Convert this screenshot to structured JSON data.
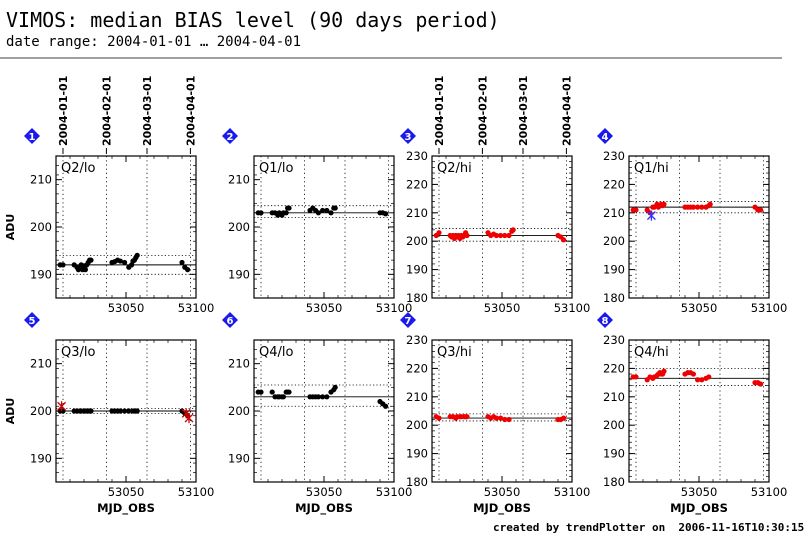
{
  "header": {
    "title": "VIMOS: median BIAS level (90 days period)",
    "subtitle": "date range: 2004-01-01 … 2004-04-01"
  },
  "footer": {
    "credit": "created by trendPlotter on  2006-11-16T10:30:15"
  },
  "colors": {
    "lo_points": "#000000",
    "hi_points": "#ee0000",
    "badge": "#1a1aee",
    "outlier_lo": "#cc0000",
    "outlier_hi": "#3333ff"
  },
  "chart_data": {
    "type": "scatter",
    "x_label": "MJD_OBS",
    "y_label": "ADU",
    "x_range": [
      53000,
      53100
    ],
    "x_ticks": [
      53050,
      53100
    ],
    "date_marks": [
      {
        "label": "2004-01-01",
        "mjd": 53005
      },
      {
        "label": "2004-02-01",
        "mjd": 53036
      },
      {
        "label": "2004-03-01",
        "mjd": 53065
      },
      {
        "label": "2004-04-01",
        "mjd": 53096
      }
    ],
    "panels": [
      {
        "num": "1",
        "label": "Q2/lo",
        "ylim": [
          185,
          215
        ],
        "yticks": [
          190,
          200,
          210
        ],
        "median": 192,
        "band": [
          190,
          194
        ],
        "color": "black",
        "points": [
          [
            53003,
            192
          ],
          [
            53005,
            192
          ],
          [
            53013,
            192
          ],
          [
            53015,
            191.5
          ],
          [
            53016,
            191
          ],
          [
            53017,
            191.2
          ],
          [
            53018,
            192
          ],
          [
            53019,
            191
          ],
          [
            53020,
            191.8
          ],
          [
            53021,
            191
          ],
          [
            53022,
            192
          ],
          [
            53023,
            192.5
          ],
          [
            53024,
            193
          ],
          [
            53025,
            193
          ],
          [
            53040,
            192.5
          ],
          [
            53042,
            192.7
          ],
          [
            53044,
            193
          ],
          [
            53046,
            192.8
          ],
          [
            53049,
            192.5
          ],
          [
            53052,
            191.5
          ],
          [
            53054,
            192
          ],
          [
            53055,
            192.8
          ],
          [
            53056,
            193
          ],
          [
            53057,
            193.5
          ],
          [
            53058,
            194
          ],
          [
            53090,
            192.5
          ],
          [
            53092,
            191.5
          ],
          [
            53094,
            191
          ]
        ]
      },
      {
        "num": "2",
        "label": "Q1/lo",
        "ylim": [
          185,
          215
        ],
        "yticks": [
          190,
          200,
          210
        ],
        "median": 203,
        "band": [
          202,
          204.5
        ],
        "color": "black",
        "points": [
          [
            53003,
            203
          ],
          [
            53005,
            203
          ],
          [
            53013,
            203
          ],
          [
            53015,
            203
          ],
          [
            53017,
            202.5
          ],
          [
            53018,
            203
          ],
          [
            53020,
            202.5
          ],
          [
            53021,
            203
          ],
          [
            53023,
            203
          ],
          [
            53024,
            204
          ],
          [
            53025,
            204
          ],
          [
            53040,
            203.5
          ],
          [
            53042,
            204
          ],
          [
            53044,
            203.5
          ],
          [
            53046,
            203
          ],
          [
            53049,
            203.5
          ],
          [
            53052,
            203.5
          ],
          [
            53055,
            203
          ],
          [
            53057,
            204
          ],
          [
            53058,
            204
          ],
          [
            53090,
            203
          ],
          [
            53092,
            203
          ],
          [
            53094,
            202.8
          ]
        ]
      },
      {
        "num": "3",
        "label": "Q2/hi",
        "ylim": [
          180,
          230
        ],
        "yticks": [
          180,
          190,
          200,
          210,
          220,
          230
        ],
        "median": 202,
        "band": [
          200,
          204.5
        ],
        "color": "red",
        "points": [
          [
            53003,
            202
          ],
          [
            53005,
            203
          ],
          [
            53013,
            202
          ],
          [
            53014,
            201.5
          ],
          [
            53015,
            202
          ],
          [
            53016,
            201
          ],
          [
            53017,
            202
          ],
          [
            53018,
            201.5
          ],
          [
            53019,
            202
          ],
          [
            53020,
            201
          ],
          [
            53021,
            202
          ],
          [
            53022,
            201.5
          ],
          [
            53023,
            202
          ],
          [
            53024,
            203
          ],
          [
            53025,
            202
          ],
          [
            53040,
            203
          ],
          [
            53042,
            202
          ],
          [
            53044,
            202.5
          ],
          [
            53046,
            202
          ],
          [
            53049,
            202
          ],
          [
            53052,
            202
          ],
          [
            53055,
            202
          ],
          [
            53057,
            203.5
          ],
          [
            53058,
            204
          ],
          [
            53090,
            202
          ],
          [
            53092,
            201.5
          ],
          [
            53094,
            200.5
          ]
        ]
      },
      {
        "num": "4",
        "label": "Q1/hi",
        "ylim": [
          180,
          230
        ],
        "yticks": [
          180,
          190,
          200,
          210,
          220,
          230
        ],
        "median": 212,
        "band": [
          210,
          214
        ],
        "color": "red",
        "points": [
          [
            53003,
            211
          ],
          [
            53005,
            211
          ],
          [
            53013,
            211
          ],
          [
            53015,
            210
          ],
          [
            53017,
            212
          ],
          [
            53018,
            212
          ],
          [
            53020,
            213
          ],
          [
            53021,
            212
          ],
          [
            53022,
            212.5
          ],
          [
            53023,
            213
          ],
          [
            53024,
            212.5
          ],
          [
            53025,
            213
          ],
          [
            53040,
            212
          ],
          [
            53042,
            212
          ],
          [
            53044,
            212
          ],
          [
            53046,
            212
          ],
          [
            53049,
            212
          ],
          [
            53052,
            212
          ],
          [
            53055,
            212
          ],
          [
            53057,
            212.5
          ],
          [
            53058,
            213
          ],
          [
            53090,
            212
          ],
          [
            53092,
            211
          ],
          [
            53094,
            211
          ]
        ],
        "outliers": [
          [
            53016,
            209
          ]
        ]
      },
      {
        "num": "5",
        "label": "Q3/lo",
        "ylim": [
          185,
          215
        ],
        "yticks": [
          190,
          200,
          210
        ],
        "median": 200,
        "band": [
          199.5,
          200.5
        ],
        "color": "black",
        "points": [
          [
            53003,
            200
          ],
          [
            53005,
            200
          ],
          [
            53013,
            200
          ],
          [
            53015,
            200
          ],
          [
            53017,
            200
          ],
          [
            53018,
            200
          ],
          [
            53020,
            200
          ],
          [
            53021,
            200
          ],
          [
            53023,
            200
          ],
          [
            53024,
            200
          ],
          [
            53025,
            200
          ],
          [
            53040,
            200
          ],
          [
            53042,
            200
          ],
          [
            53044,
            200
          ],
          [
            53046,
            200
          ],
          [
            53049,
            200
          ],
          [
            53052,
            200
          ],
          [
            53055,
            200
          ],
          [
            53057,
            200
          ],
          [
            53058,
            200
          ],
          [
            53090,
            200
          ],
          [
            53092,
            199.5
          ],
          [
            53094,
            199
          ]
        ],
        "outliers": [
          [
            53004,
            201
          ],
          [
            53093,
            199.5
          ],
          [
            53095,
            198.5
          ]
        ]
      },
      {
        "num": "6",
        "label": "Q4/lo",
        "ylim": [
          185,
          215
        ],
        "yticks": [
          190,
          200,
          210
        ],
        "median": 203,
        "band": [
          201,
          205.5
        ],
        "color": "black",
        "points": [
          [
            53003,
            204
          ],
          [
            53005,
            204
          ],
          [
            53013,
            204
          ],
          [
            53015,
            203
          ],
          [
            53017,
            203
          ],
          [
            53018,
            203
          ],
          [
            53020,
            203
          ],
          [
            53021,
            203
          ],
          [
            53023,
            204
          ],
          [
            53024,
            204
          ],
          [
            53025,
            204
          ],
          [
            53040,
            203
          ],
          [
            53042,
            203
          ],
          [
            53044,
            203
          ],
          [
            53046,
            203
          ],
          [
            53049,
            203
          ],
          [
            53052,
            203
          ],
          [
            53055,
            204
          ],
          [
            53057,
            204.5
          ],
          [
            53058,
            205
          ],
          [
            53090,
            202
          ],
          [
            53092,
            201.5
          ],
          [
            53094,
            201
          ]
        ]
      },
      {
        "num": "7",
        "label": "Q3/hi",
        "ylim": [
          180,
          230
        ],
        "yticks": [
          180,
          190,
          200,
          210,
          220,
          230
        ],
        "median": 202.5,
        "band": [
          201.5,
          204
        ],
        "color": "red",
        "points": [
          [
            53003,
            203
          ],
          [
            53005,
            202.5
          ],
          [
            53013,
            203
          ],
          [
            53015,
            203
          ],
          [
            53017,
            202.5
          ],
          [
            53018,
            203
          ],
          [
            53020,
            203
          ],
          [
            53021,
            203
          ],
          [
            53023,
            203
          ],
          [
            53024,
            203
          ],
          [
            53025,
            203
          ],
          [
            53040,
            203
          ],
          [
            53042,
            202.5
          ],
          [
            53044,
            203
          ],
          [
            53046,
            202.5
          ],
          [
            53049,
            202.5
          ],
          [
            53052,
            202
          ],
          [
            53055,
            202
          ],
          [
            53090,
            202
          ],
          [
            53092,
            202
          ],
          [
            53094,
            202.5
          ]
        ]
      },
      {
        "num": "8",
        "label": "Q4/hi",
        "ylim": [
          180,
          230
        ],
        "yticks": [
          180,
          190,
          200,
          210,
          220,
          230
        ],
        "median": 216.5,
        "band": [
          214,
          220
        ],
        "color": "red",
        "points": [
          [
            53003,
            217
          ],
          [
            53005,
            217
          ],
          [
            53013,
            216
          ],
          [
            53015,
            217
          ],
          [
            53017,
            216.5
          ],
          [
            53018,
            217
          ],
          [
            53020,
            217.5
          ],
          [
            53021,
            218
          ],
          [
            53022,
            218.5
          ],
          [
            53023,
            218
          ],
          [
            53024,
            218
          ],
          [
            53025,
            219
          ],
          [
            53040,
            218
          ],
          [
            53042,
            218.5
          ],
          [
            53044,
            218.5
          ],
          [
            53046,
            218
          ],
          [
            53049,
            216
          ],
          [
            53052,
            216
          ],
          [
            53055,
            216.5
          ],
          [
            53057,
            217
          ],
          [
            53090,
            215
          ],
          [
            53092,
            215
          ],
          [
            53094,
            214.5
          ]
        ]
      }
    ]
  }
}
